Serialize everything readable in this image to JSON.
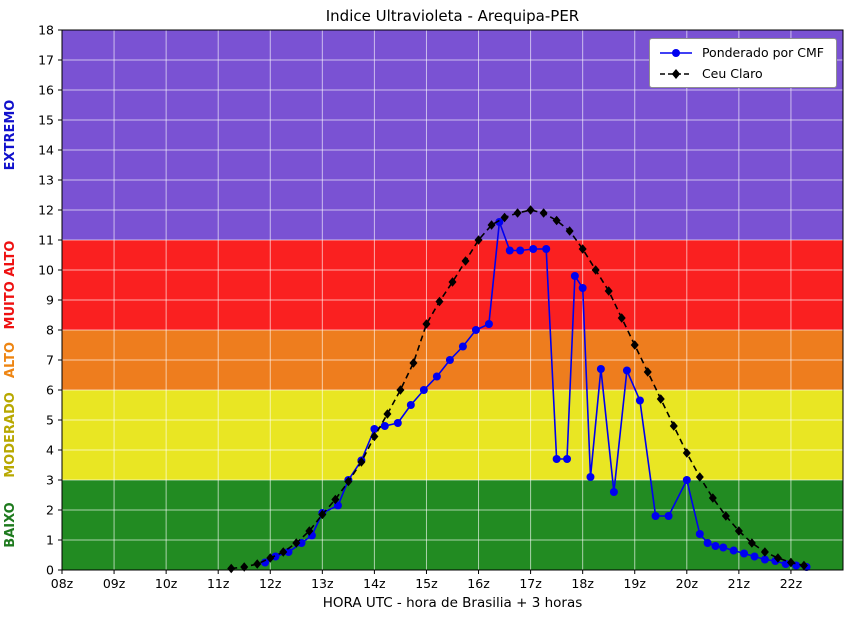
{
  "chart_data": {
    "type": "line",
    "title": "Indice Ultravioleta - Arequipa-PER",
    "xlabel": "HORA UTC - hora de Brasilia + 3 horas",
    "ylabel": "",
    "xlim": [
      8,
      23
    ],
    "ylim": [
      0,
      18
    ],
    "grid": true,
    "legend_position": "upper right",
    "x_ticks": [
      {
        "v": 8,
        "label": "08z"
      },
      {
        "v": 9,
        "label": "09z"
      },
      {
        "v": 10,
        "label": "10z"
      },
      {
        "v": 11,
        "label": "11z"
      },
      {
        "v": 12,
        "label": "12z"
      },
      {
        "v": 13,
        "label": "13z"
      },
      {
        "v": 14,
        "label": "14z"
      },
      {
        "v": 15,
        "label": "15z"
      },
      {
        "v": 16,
        "label": "16z"
      },
      {
        "v": 17,
        "label": "17z"
      },
      {
        "v": 18,
        "label": "18z"
      },
      {
        "v": 19,
        "label": "19z"
      },
      {
        "v": 20,
        "label": "20z"
      },
      {
        "v": 21,
        "label": "21z"
      },
      {
        "v": 22,
        "label": "22z"
      }
    ],
    "y_ticks": [
      0,
      1,
      2,
      3,
      4,
      5,
      6,
      7,
      8,
      9,
      10,
      11,
      12,
      13,
      14,
      15,
      16,
      17,
      18
    ],
    "bands": [
      {
        "label": "BAIXO",
        "from": 0,
        "to": 3,
        "color": "#228b22",
        "label_color": "#1e7a1e"
      },
      {
        "label": "MODERADO",
        "from": 3,
        "to": 6,
        "color": "#e9e623",
        "label_color": "#b8a800"
      },
      {
        "label": "ALTO",
        "from": 6,
        "to": 8,
        "color": "#ee7d1e",
        "label_color": "#ee8512"
      },
      {
        "label": "MUITO ALTO",
        "from": 8,
        "to": 11,
        "color": "#fa2020",
        "label_color": "#ee1111"
      },
      {
        "label": "EXTREMO",
        "from": 11,
        "to": 18,
        "color": "#7a52d3",
        "label_color": "#1111cc"
      }
    ],
    "series": [
      {
        "id": "ponderado-por-cmf",
        "name": "Ponderado por CMF",
        "color": "#0000f0",
        "marker": "circle",
        "line": "solid",
        "x": [
          11.9,
          12.1,
          12.35,
          12.6,
          12.8,
          13.0,
          13.3,
          13.5,
          13.75,
          14.0,
          14.2,
          14.45,
          14.7,
          14.95,
          15.2,
          15.45,
          15.7,
          15.95,
          16.2,
          16.4,
          16.6,
          16.8,
          17.05,
          17.3,
          17.5,
          17.7,
          17.85,
          18.0,
          18.15,
          18.35,
          18.6,
          18.85,
          19.1,
          19.4,
          19.65,
          20.0,
          20.25,
          20.4,
          20.55,
          20.7,
          20.9,
          21.1,
          21.3,
          21.5,
          21.7,
          21.9,
          22.1,
          22.3
        ],
        "y": [
          0.25,
          0.45,
          0.6,
          0.9,
          1.15,
          1.9,
          2.15,
          3.0,
          3.65,
          4.7,
          4.8,
          4.9,
          5.5,
          6.0,
          6.45,
          7.0,
          7.45,
          8.0,
          8.2,
          11.6,
          10.65,
          10.65,
          10.7,
          10.7,
          3.7,
          3.7,
          9.8,
          9.4,
          3.1,
          6.7,
          2.6,
          6.65,
          5.65,
          1.8,
          1.8,
          3.0,
          1.2,
          0.9,
          0.8,
          0.75,
          0.65,
          0.55,
          0.45,
          0.35,
          0.3,
          0.2,
          0.15,
          0.1
        ]
      },
      {
        "id": "ceu-claro",
        "name": "Ceu Claro",
        "color": "#000000",
        "marker": "diamond",
        "line": "dashed",
        "x": [
          11.25,
          11.5,
          11.75,
          12.0,
          12.25,
          12.5,
          12.75,
          13.0,
          13.25,
          13.5,
          13.75,
          14.0,
          14.25,
          14.5,
          14.75,
          15.0,
          15.25,
          15.5,
          15.75,
          16.0,
          16.25,
          16.5,
          16.75,
          17.0,
          17.25,
          17.5,
          17.75,
          18.0,
          18.25,
          18.5,
          18.75,
          19.0,
          19.25,
          19.5,
          19.75,
          20.0,
          20.25,
          20.5,
          20.75,
          21.0,
          21.25,
          21.5,
          21.75,
          22.0,
          22.25
        ],
        "y": [
          0.05,
          0.1,
          0.2,
          0.4,
          0.6,
          0.9,
          1.3,
          1.85,
          2.35,
          2.95,
          3.6,
          4.45,
          5.2,
          6.0,
          6.9,
          8.2,
          8.95,
          9.6,
          10.3,
          11.0,
          11.5,
          11.75,
          11.9,
          12.0,
          11.9,
          11.65,
          11.3,
          10.7,
          10.0,
          9.3,
          8.4,
          7.5,
          6.6,
          5.7,
          4.8,
          3.9,
          3.1,
          2.4,
          1.8,
          1.3,
          0.9,
          0.6,
          0.4,
          0.25,
          0.15
        ]
      }
    ]
  }
}
